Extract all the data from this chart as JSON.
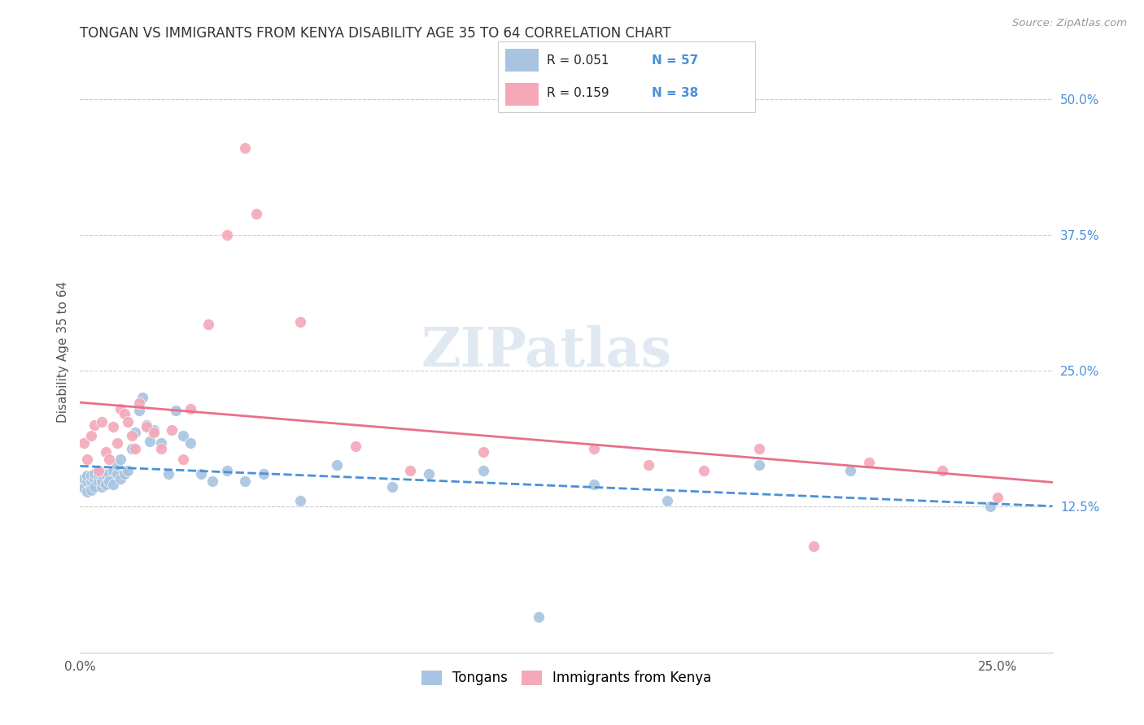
{
  "title": "TONGAN VS IMMIGRANTS FROM KENYA DISABILITY AGE 35 TO 64 CORRELATION CHART",
  "source": "Source: ZipAtlas.com",
  "ylabel": "Disability Age 35 to 64",
  "xlim": [
    0.0,
    0.265
  ],
  "ylim": [
    -0.01,
    0.545
  ],
  "xtick_vals": [
    0.0,
    0.05,
    0.1,
    0.15,
    0.2,
    0.25
  ],
  "xtick_labels": [
    "0.0%",
    "",
    "",
    "",
    "",
    "25.0%"
  ],
  "ytick_labels_right": [
    "50.0%",
    "37.5%",
    "25.0%",
    "12.5%"
  ],
  "ytick_vals_right": [
    0.5,
    0.375,
    0.25,
    0.125
  ],
  "legend_label1": "Tongans",
  "legend_label2": "Immigrants from Kenya",
  "R1": "0.051",
  "N1": "57",
  "R2": "0.159",
  "N2": "38",
  "blue_color": "#a8c4e0",
  "pink_color": "#f4a8b8",
  "blue_line_color": "#4a90d9",
  "pink_line_color": "#e8708a",
  "title_color": "#333333",
  "watermark": "ZIPatlas",
  "tongans_x": [
    0.001,
    0.001,
    0.002,
    0.002,
    0.002,
    0.003,
    0.003,
    0.003,
    0.003,
    0.004,
    0.004,
    0.004,
    0.005,
    0.005,
    0.006,
    0.006,
    0.006,
    0.007,
    0.007,
    0.008,
    0.008,
    0.009,
    0.009,
    0.01,
    0.01,
    0.011,
    0.011,
    0.012,
    0.013,
    0.014,
    0.015,
    0.016,
    0.017,
    0.018,
    0.019,
    0.02,
    0.022,
    0.024,
    0.026,
    0.028,
    0.03,
    0.033,
    0.036,
    0.04,
    0.045,
    0.05,
    0.06,
    0.07,
    0.085,
    0.095,
    0.11,
    0.125,
    0.14,
    0.16,
    0.185,
    0.21,
    0.248
  ],
  "tongans_y": [
    0.15,
    0.142,
    0.148,
    0.138,
    0.153,
    0.143,
    0.148,
    0.153,
    0.14,
    0.15,
    0.155,
    0.143,
    0.148,
    0.155,
    0.143,
    0.148,
    0.155,
    0.155,
    0.145,
    0.155,
    0.148,
    0.158,
    0.145,
    0.155,
    0.163,
    0.15,
    0.168,
    0.155,
    0.158,
    0.178,
    0.193,
    0.213,
    0.225,
    0.2,
    0.185,
    0.195,
    0.183,
    0.155,
    0.213,
    0.19,
    0.183,
    0.155,
    0.148,
    0.158,
    0.148,
    0.155,
    0.13,
    0.163,
    0.143,
    0.155,
    0.158,
    0.023,
    0.145,
    0.13,
    0.163,
    0.158,
    0.125
  ],
  "kenya_x": [
    0.001,
    0.002,
    0.003,
    0.004,
    0.005,
    0.006,
    0.007,
    0.008,
    0.009,
    0.01,
    0.011,
    0.012,
    0.013,
    0.014,
    0.015,
    0.016,
    0.018,
    0.02,
    0.022,
    0.025,
    0.028,
    0.03,
    0.035,
    0.04,
    0.045,
    0.048,
    0.06,
    0.075,
    0.09,
    0.11,
    0.14,
    0.155,
    0.17,
    0.185,
    0.2,
    0.215,
    0.235,
    0.25
  ],
  "kenya_y": [
    0.183,
    0.168,
    0.19,
    0.2,
    0.158,
    0.203,
    0.175,
    0.168,
    0.198,
    0.183,
    0.215,
    0.21,
    0.203,
    0.19,
    0.178,
    0.22,
    0.198,
    0.193,
    0.178,
    0.195,
    0.168,
    0.215,
    0.293,
    0.375,
    0.455,
    0.395,
    0.295,
    0.18,
    0.158,
    0.175,
    0.178,
    0.163,
    0.158,
    0.178,
    0.088,
    0.165,
    0.158,
    0.133
  ]
}
